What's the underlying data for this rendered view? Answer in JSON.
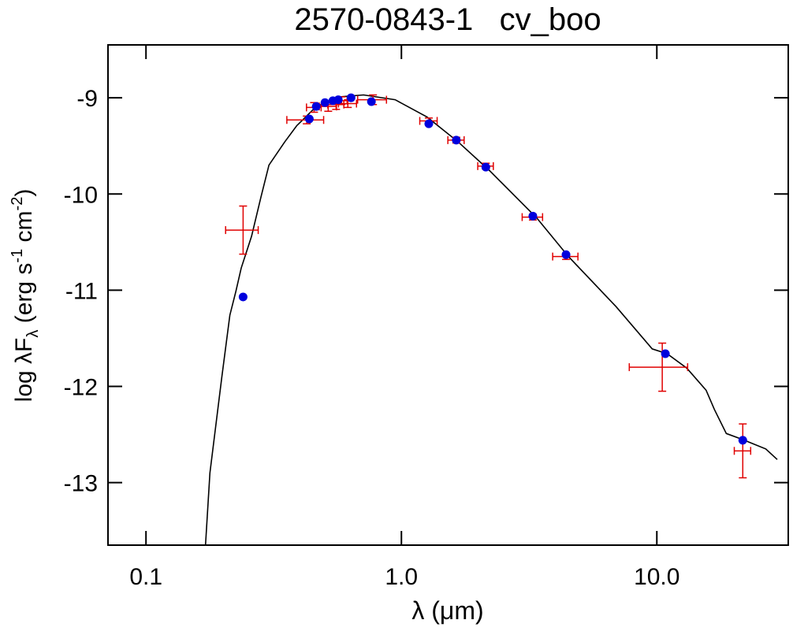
{
  "chart_data": {
    "type": "sed",
    "title": "2570-0843-1   cv_boo",
    "x_label": "λ (μm)",
    "y_label_parts": [
      "log λF",
      "λ",
      " (erg s",
      "-1",
      " cm",
      "-2",
      ")"
    ],
    "log_x": true,
    "xlim": [
      0.071,
      32.7
    ],
    "ylim": [
      -13.65,
      -8.45
    ],
    "xticks": [
      0.1,
      {
        "value": 1,
        "label": "1.0"
      },
      {
        "value": 10,
        "label": "10.0"
      }
    ],
    "yticks": [
      -13,
      -12,
      -11,
      -10,
      -9
    ],
    "model": {
      "color": "#000000",
      "x": [
        0.171,
        0.178,
        0.198,
        0.213,
        0.225,
        0.236,
        0.259,
        0.282,
        0.303,
        0.349,
        0.389,
        0.464,
        0.575,
        0.711,
        0.945,
        1.26,
        1.67,
        2.22,
        3.39,
        4.51,
        6.92,
        9.59,
        10.97,
        13.1,
        15.6,
        16.8,
        18.7,
        21.6,
        26.7,
        29.6
      ],
      "values": [
        -13.65,
        -12.9,
        -11.91,
        -11.26,
        -11.01,
        -10.77,
        -10.44,
        -10.03,
        -9.7,
        -9.46,
        -9.29,
        -9.09,
        -8.99,
        -8.97,
        -9.02,
        -9.2,
        -9.46,
        -9.76,
        -10.25,
        -10.65,
        -11.17,
        -11.61,
        -11.66,
        -11.81,
        -12.04,
        -12.24,
        -12.49,
        -12.55,
        -12.65,
        -12.76
      ]
    },
    "model_points": {
      "color": "#0000dd",
      "x": [
        0.24,
        0.436,
        0.464,
        0.502,
        0.539,
        0.566,
        0.635,
        0.763,
        1.28,
        1.64,
        2.14,
        3.27,
        4.41,
        10.8,
        21.7
      ],
      "values": [
        -11.07,
        -9.22,
        -9.09,
        -9.05,
        -9.03,
        -9.02,
        -9.0,
        -9.04,
        -9.27,
        -9.44,
        -9.72,
        -10.23,
        -10.63,
        -11.66,
        -12.56
      ]
    },
    "observed": {
      "color": "#e00000",
      "x": [
        0.24,
        0.426,
        0.455,
        0.517,
        0.555,
        0.583,
        0.617,
        0.774,
        1.28,
        1.64,
        2.14,
        3.27,
        4.41,
        10.5,
        21.7
      ],
      "xerr": [
        0.035,
        0.07,
        0.03,
        0.04,
        0.04,
        0.03,
        0.05,
        0.1,
        0.1,
        0.12,
        0.15,
        0.3,
        0.5,
        2.7,
        1.6
      ],
      "values": [
        -10.375,
        -9.23,
        -9.1,
        -9.09,
        -9.07,
        -9.03,
        -9.06,
        -9.02,
        -9.24,
        -9.44,
        -9.71,
        -10.24,
        -10.65,
        -11.8,
        -12.67
      ],
      "yerr": [
        0.25,
        0.04,
        0.05,
        0.05,
        0.05,
        0.04,
        0.04,
        0.05,
        0.03,
        0.03,
        0.03,
        0.03,
        0.03,
        0.25,
        0.28
      ]
    }
  }
}
